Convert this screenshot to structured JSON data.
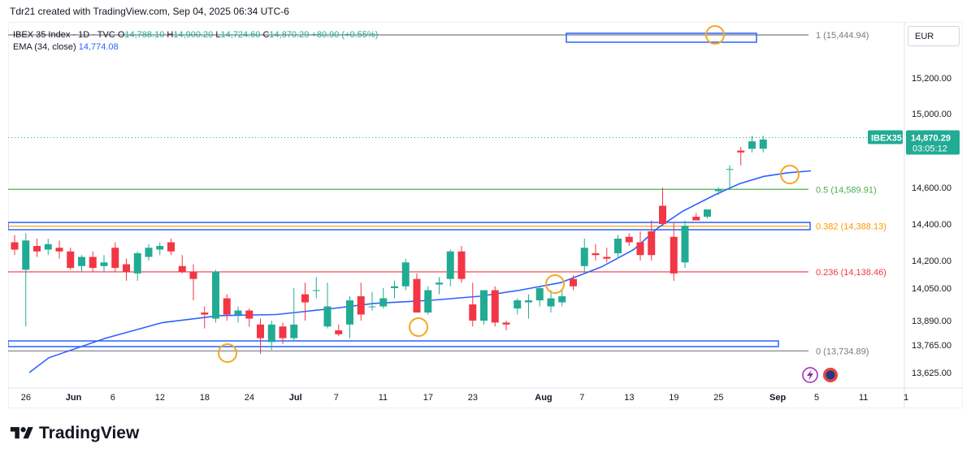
{
  "attribution": "Tdr21 created with TradingView.com, Sep 04, 2025 06:34 UTC-6",
  "legend": {
    "symbol": "IBEX 35 Index · 1D · TVC",
    "open_label": "O",
    "open": "14,788.10",
    "high_label": "H",
    "high": "14,900.20",
    "low_label": "L",
    "low": "14,724.60",
    "close_label": "C",
    "close": "14,870.29",
    "change": "+80.90 (+0.55%)",
    "ema_label": "EMA (34, close)",
    "ema_value": "14,774.08"
  },
  "currency": "EUR",
  "footer_brand": "TradingView",
  "colors": {
    "up": "#22ab94",
    "down": "#f23645",
    "ema": "#2962ff",
    "fib_05": "#4caf50",
    "fib_0382": "#ff9800",
    "fib_0236": "#f23645",
    "fib_line": "#787b86",
    "box": "#2962ff",
    "circle": "#f5a623"
  },
  "chart_data": {
    "type": "candlestick",
    "symbol_badge": "IBEX35",
    "last_price": "14,870.29",
    "countdown": "03:05:12",
    "price_ticks": [
      {
        "value": 15200,
        "label": "15,200.00"
      },
      {
        "value": 15000,
        "label": "15,000.00"
      },
      {
        "value": 14600,
        "label": "14,600.00"
      },
      {
        "value": 14400,
        "label": "14,400.00"
      },
      {
        "value": 14200,
        "label": "14,200.00"
      },
      {
        "value": 14050,
        "label": "14,050.00"
      },
      {
        "value": 13890,
        "label": "13,890.00"
      },
      {
        "value": 13765,
        "label": "13,765.00"
      },
      {
        "value": 13625,
        "label": "13,625.00"
      }
    ],
    "x_ticks": [
      {
        "index": 1,
        "label": "26"
      },
      {
        "index": 5,
        "label": "Jun",
        "bold": true
      },
      {
        "index": 9,
        "label": "6"
      },
      {
        "index": 13,
        "label": "12"
      },
      {
        "index": 17,
        "label": "18"
      },
      {
        "index": 21,
        "label": "24"
      },
      {
        "index": 25,
        "label": "Jul",
        "bold": true
      },
      {
        "index": 29,
        "label": "7"
      },
      {
        "index": 33,
        "label": "11"
      },
      {
        "index": 37,
        "label": "17"
      },
      {
        "index": 41,
        "label": "23"
      },
      {
        "index": 47,
        "label": "Aug",
        "bold": true
      },
      {
        "index": 51,
        "label": "7"
      },
      {
        "index": 55,
        "label": "13"
      },
      {
        "index": 59,
        "label": "19"
      },
      {
        "index": 63,
        "label": "25"
      },
      {
        "index": 68,
        "label": "Sep",
        "bold": true
      },
      {
        "index": 72,
        "label": "5"
      },
      {
        "index": 76,
        "label": "11"
      },
      {
        "index": 80,
        "label": "1"
      }
    ],
    "fib_levels": [
      {
        "ratio": "1",
        "value": 15444.94,
        "label": "1 (15,444.94)"
      },
      {
        "ratio": "0.5",
        "value": 14589.91,
        "label": "0.5 (14,589.91)"
      },
      {
        "ratio": "0.382",
        "value": 14388.13,
        "label": "0.382 (14,388.13)"
      },
      {
        "ratio": "0.236",
        "value": 14138.46,
        "label": "0.236 (14,138.46)"
      },
      {
        "ratio": "0",
        "value": 13734.89,
        "label": "0 (13,734.89)"
      }
    ],
    "candles": [
      {
        "o": 14300,
        "h": 14340,
        "l": 14230,
        "c": 14260
      },
      {
        "o": 14150,
        "h": 14350,
        "l": 13860,
        "c": 14310
      },
      {
        "o": 14280,
        "h": 14320,
        "l": 14220,
        "c": 14250
      },
      {
        "o": 14260,
        "h": 14320,
        "l": 14230,
        "c": 14290
      },
      {
        "o": 14270,
        "h": 14310,
        "l": 14210,
        "c": 14250
      },
      {
        "o": 14250,
        "h": 14270,
        "l": 14150,
        "c": 14160
      },
      {
        "o": 14170,
        "h": 14230,
        "l": 14140,
        "c": 14220
      },
      {
        "o": 14220,
        "h": 14250,
        "l": 14140,
        "c": 14160
      },
      {
        "o": 14170,
        "h": 14230,
        "l": 14140,
        "c": 14190
      },
      {
        "o": 14270,
        "h": 14300,
        "l": 14140,
        "c": 14160
      },
      {
        "o": 14180,
        "h": 14210,
        "l": 14090,
        "c": 14140
      },
      {
        "o": 14130,
        "h": 14250,
        "l": 14090,
        "c": 14240
      },
      {
        "o": 14220,
        "h": 14290,
        "l": 14200,
        "c": 14270
      },
      {
        "o": 14260,
        "h": 14300,
        "l": 14230,
        "c": 14280
      },
      {
        "o": 14300,
        "h": 14320,
        "l": 14230,
        "c": 14250
      },
      {
        "o": 14170,
        "h": 14230,
        "l": 14130,
        "c": 14140
      },
      {
        "o": 14140,
        "h": 14180,
        "l": 13990,
        "c": 14100
      },
      {
        "o": 13930,
        "h": 13960,
        "l": 13850,
        "c": 13920
      },
      {
        "o": 13900,
        "h": 14150,
        "l": 13880,
        "c": 14140
      },
      {
        "o": 14000,
        "h": 14020,
        "l": 13890,
        "c": 13920
      },
      {
        "o": 13920,
        "h": 13960,
        "l": 13880,
        "c": 13940
      },
      {
        "o": 13940,
        "h": 13950,
        "l": 13860,
        "c": 13900
      },
      {
        "o": 13870,
        "h": 13900,
        "l": 13720,
        "c": 13800
      },
      {
        "o": 13780,
        "h": 13890,
        "l": 13740,
        "c": 13870
      },
      {
        "o": 13860,
        "h": 13880,
        "l": 13770,
        "c": 13800
      },
      {
        "o": 13800,
        "h": 14050,
        "l": 13790,
        "c": 13870
      },
      {
        "o": 14020,
        "h": 14080,
        "l": 13890,
        "c": 13980
      },
      {
        "o": 14040,
        "h": 14110,
        "l": 14000,
        "c": 14040
      },
      {
        "o": 13860,
        "h": 14080,
        "l": 13850,
        "c": 13960
      },
      {
        "o": 13840,
        "h": 13870,
        "l": 13810,
        "c": 13820
      },
      {
        "o": 13870,
        "h": 14010,
        "l": 13800,
        "c": 13990
      },
      {
        "o": 14010,
        "h": 14080,
        "l": 13890,
        "c": 13920
      },
      {
        "o": 13960,
        "h": 14030,
        "l": 13940,
        "c": 13960
      },
      {
        "o": 13960,
        "h": 14050,
        "l": 13950,
        "c": 14000
      },
      {
        "o": 14050,
        "h": 14090,
        "l": 14000,
        "c": 14060
      },
      {
        "o": 14060,
        "h": 14210,
        "l": 14040,
        "c": 14190
      },
      {
        "o": 14100,
        "h": 14130,
        "l": 13930,
        "c": 13930
      },
      {
        "o": 13930,
        "h": 14060,
        "l": 13920,
        "c": 14040
      },
      {
        "o": 14070,
        "h": 14110,
        "l": 14020,
        "c": 14080
      },
      {
        "o": 14100,
        "h": 14260,
        "l": 14060,
        "c": 14250
      },
      {
        "o": 14250,
        "h": 14280,
        "l": 14080,
        "c": 14100
      },
      {
        "o": 13970,
        "h": 14080,
        "l": 13860,
        "c": 13890
      },
      {
        "o": 13890,
        "h": 14040,
        "l": 13870,
        "c": 14040
      },
      {
        "o": 14040,
        "h": 14060,
        "l": 13860,
        "c": 13880
      },
      {
        "o": 13880,
        "h": 13890,
        "l": 13840,
        "c": 13870
      },
      {
        "o": 13950,
        "h": 14000,
        "l": 13920,
        "c": 13990
      },
      {
        "o": 13980,
        "h": 14020,
        "l": 13900,
        "c": 13990
      },
      {
        "o": 13990,
        "h": 14060,
        "l": 13960,
        "c": 14050
      },
      {
        "o": 13960,
        "h": 14040,
        "l": 13930,
        "c": 14000
      },
      {
        "o": 13980,
        "h": 14040,
        "l": 13960,
        "c": 14010
      },
      {
        "o": 14100,
        "h": 14120,
        "l": 14040,
        "c": 14060
      },
      {
        "o": 14170,
        "h": 14320,
        "l": 14140,
        "c": 14270
      },
      {
        "o": 14240,
        "h": 14290,
        "l": 14200,
        "c": 14230
      },
      {
        "o": 14220,
        "h": 14270,
        "l": 14190,
        "c": 14210
      },
      {
        "o": 14240,
        "h": 14340,
        "l": 14210,
        "c": 14320
      },
      {
        "o": 14330,
        "h": 14350,
        "l": 14280,
        "c": 14300
      },
      {
        "o": 14300,
        "h": 14360,
        "l": 14200,
        "c": 14230
      },
      {
        "o": 14360,
        "h": 14420,
        "l": 14200,
        "c": 14230
      },
      {
        "o": 14500,
        "h": 14600,
        "l": 14390,
        "c": 14400
      },
      {
        "o": 14330,
        "h": 14410,
        "l": 14090,
        "c": 14130
      },
      {
        "o": 14190,
        "h": 14420,
        "l": 14160,
        "c": 14390
      },
      {
        "o": 14440,
        "h": 14460,
        "l": 14420,
        "c": 14420
      },
      {
        "o": 14440,
        "h": 14480,
        "l": 14430,
        "c": 14480
      },
      {
        "o": 14580,
        "h": 14600,
        "l": 14560,
        "c": 14590
      },
      {
        "o": 14700,
        "h": 14720,
        "l": 14600,
        "c": 14700
      },
      {
        "o": 14800,
        "h": 14820,
        "l": 14720,
        "c": 14790
      },
      {
        "o": 14810,
        "h": 14880,
        "l": 14790,
        "c": 14850
      },
      {
        "o": 14810,
        "h": 14880,
        "l": 14790,
        "c": 14860
      }
    ]
  }
}
